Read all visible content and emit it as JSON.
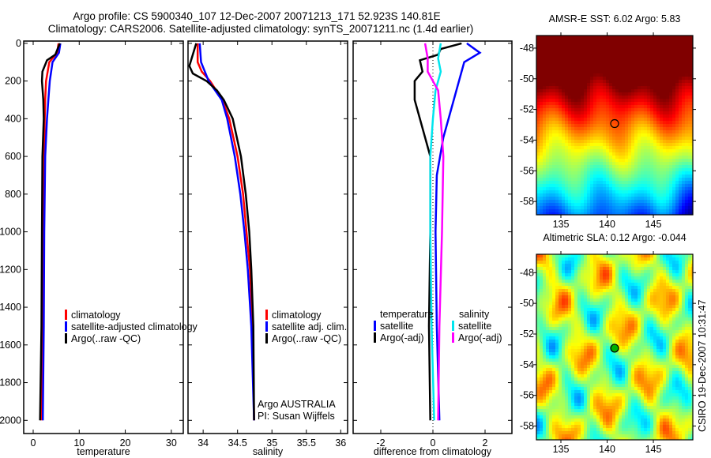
{
  "header": {
    "line1": "Argo profile: CS 5900340_107 12-Dec-2007 20071213_171 52.923S 140.81E",
    "line2": "Climatology: CARS2006. Satellite-adjusted climatology: synTS_20071211.nc (1.4d earlier)"
  },
  "colors": {
    "clim": "#ff0000",
    "sat": "#0000ff",
    "argo": "#000000",
    "sal_sat": "#00e5ee",
    "sal_argo": "#ff00ff"
  },
  "chart_data": [
    {
      "type": "line",
      "id": "temperature",
      "xlabel": "temperature",
      "ylabel": "",
      "xlim": [
        -2.06,
        32.6
      ],
      "ylim": [
        2070,
        -12
      ],
      "xticks": [
        0,
        10,
        20,
        30
      ],
      "yticks": [
        0,
        200,
        400,
        600,
        800,
        1000,
        1200,
        1400,
        1600,
        1800,
        2000
      ],
      "legend": [
        "climatology",
        "satellite-adjusted climatology",
        "Argo(..raw -QC)"
      ],
      "series": [
        {
          "name": "climatology",
          "color": "clim",
          "p": [
            0,
            50,
            100,
            200,
            300,
            400,
            600,
            1000,
            1500,
            2000
          ],
          "v": [
            5.5,
            5.2,
            3.5,
            2.8,
            2.6,
            2.5,
            2.4,
            2.2,
            2.0,
            1.8
          ]
        },
        {
          "name": "satellite-adjusted climatology",
          "color": "sat",
          "p": [
            0,
            50,
            100,
            200,
            300,
            400,
            600,
            1000,
            1500,
            2000
          ],
          "v": [
            5.9,
            5.6,
            4.2,
            3.6,
            3.3,
            3.0,
            2.6,
            2.4,
            2.3,
            2.1
          ]
        },
        {
          "name": "Argo(..raw -QC)",
          "color": "argo",
          "p": [
            0,
            60,
            90,
            150,
            200,
            300,
            400,
            600,
            1000,
            1500,
            2000
          ],
          "v": [
            5.8,
            4.8,
            3.0,
            2.0,
            1.9,
            2.2,
            2.3,
            2.0,
            1.9,
            1.8,
            1.5
          ]
        }
      ]
    },
    {
      "type": "line",
      "id": "salinity",
      "xlabel": "salinity",
      "ylabel": "",
      "xlim": [
        33.78,
        36.1
      ],
      "ylim": [
        2070,
        -12
      ],
      "xticks": [
        34,
        34.5,
        35,
        35.5,
        36
      ],
      "yticks": [
        0,
        200,
        400,
        600,
        800,
        1000,
        1200,
        1400,
        1600,
        1800,
        2000
      ],
      "legend": [
        "climatology",
        "satellite adj. clim.",
        "Argo(..raw -QC)"
      ],
      "annotation": [
        "Argo AUSTRALIA",
        "PI: Susan Wijffels"
      ],
      "series": [
        {
          "name": "climatology",
          "color": "clim",
          "p": [
            0,
            100,
            150,
            200,
            300,
            400,
            600,
            800,
            1000,
            1200,
            1500,
            2000
          ],
          "v": [
            33.92,
            33.92,
            33.98,
            34.1,
            34.28,
            34.38,
            34.5,
            34.58,
            34.63,
            34.68,
            34.72,
            34.74
          ]
        },
        {
          "name": "satellite adj. clim.",
          "color": "sat",
          "p": [
            0,
            100,
            200,
            300,
            400,
            600,
            800,
            1000,
            1200,
            1500,
            2000
          ],
          "v": [
            33.95,
            33.97,
            34.08,
            34.27,
            34.35,
            34.46,
            34.54,
            34.6,
            34.65,
            34.7,
            34.74
          ]
        },
        {
          "name": "Argo(..raw -QC)",
          "color": "argo",
          "p": [
            0,
            120,
            160,
            200,
            250,
            300,
            400,
            600,
            800,
            1000,
            1200,
            1500,
            2000
          ],
          "v": [
            33.9,
            33.8,
            33.85,
            34.05,
            34.2,
            34.3,
            34.43,
            34.55,
            34.62,
            34.67,
            34.7,
            34.73,
            34.74
          ]
        }
      ]
    },
    {
      "type": "line",
      "id": "difference",
      "xlabel": "difference from climatology",
      "ylabel": "",
      "xlim": [
        -3.06,
        3.03
      ],
      "ylim": [
        2070,
        -12
      ],
      "xticks": [
        -2,
        0,
        2
      ],
      "yticks": [
        0,
        200,
        400,
        600,
        800,
        1000,
        1200,
        1400,
        1600,
        1800,
        2000
      ],
      "legend_headers": [
        "temperature",
        "salinity"
      ],
      "legend": [
        "satellite",
        "Argo(-adj)",
        "satellite",
        "Argo(-adj)"
      ],
      "series": [
        {
          "name": "temperature satellite",
          "color": "sat",
          "p": [
            0,
            50,
            100,
            200,
            300,
            500,
            700,
            1000,
            1500,
            2000
          ],
          "v": [
            1.3,
            1.8,
            1.2,
            1.0,
            0.8,
            0.4,
            0.15,
            0.1,
            0.15,
            0.25
          ]
        },
        {
          "name": "temperature Argo(-adj)",
          "color": "argo",
          "p": [
            0,
            30,
            60,
            90,
            150,
            200,
            300,
            400,
            500,
            600,
            1000,
            1500,
            2000
          ],
          "v": [
            1.1,
            0.3,
            0.2,
            -0.5,
            -0.4,
            -0.7,
            -0.7,
            -0.5,
            -0.3,
            -0.1,
            -0.1,
            -0.15,
            -0.1
          ]
        },
        {
          "name": "salinity satellite",
          "color": "sal_sat",
          "p": [
            0,
            80,
            150,
            250,
            400,
            600,
            1000,
            1500,
            2000
          ],
          "v": [
            0.3,
            0.2,
            0.3,
            0.1,
            0.0,
            -0.1,
            -0.1,
            -0.05,
            0.05
          ]
        },
        {
          "name": "salinity Argo(-adj)",
          "color": "sal_argo",
          "p": [
            0,
            80,
            150,
            250,
            400,
            600,
            1000,
            1500,
            2000
          ],
          "v": [
            -0.3,
            -0.2,
            -0.2,
            0.2,
            0.3,
            0.4,
            0.35,
            0.25,
            0.2
          ]
        }
      ]
    },
    {
      "type": "heatmap",
      "id": "sst_map",
      "title": "AMSR-E SST: 6.02 Argo: 5.83",
      "xlim": [
        132.35,
        149.27
      ],
      "ylim": [
        -58.87,
        -47.18
      ],
      "xticks": [
        135,
        140,
        145
      ],
      "yticks": [
        -48,
        -50,
        -52,
        -54,
        -56,
        -58
      ],
      "ytick_labels": [
        "-48",
        "-50",
        "-52",
        "-54",
        "-56",
        "-58"
      ],
      "marker": {
        "lon": 140.81,
        "lat": -52.923
      }
    },
    {
      "type": "heatmap",
      "id": "sla_map",
      "title": "Altimetric SLA: 0.12 Argo: -0.044",
      "xlim": [
        132.35,
        149.27
      ],
      "ylim": [
        -58.9,
        -46.8
      ],
      "xticks": [
        135,
        140,
        145
      ],
      "yticks": [
        -48,
        -50,
        -52,
        -54,
        -56,
        -58
      ],
      "ytick_labels": [
        "-48",
        "-50",
        "-52",
        "-54",
        "-56",
        "-58"
      ],
      "marker": {
        "lon": 140.81,
        "lat": -52.923
      }
    }
  ],
  "footer": {
    "stamp": "CSIRO 19-Dec-2007 10:31:47"
  }
}
